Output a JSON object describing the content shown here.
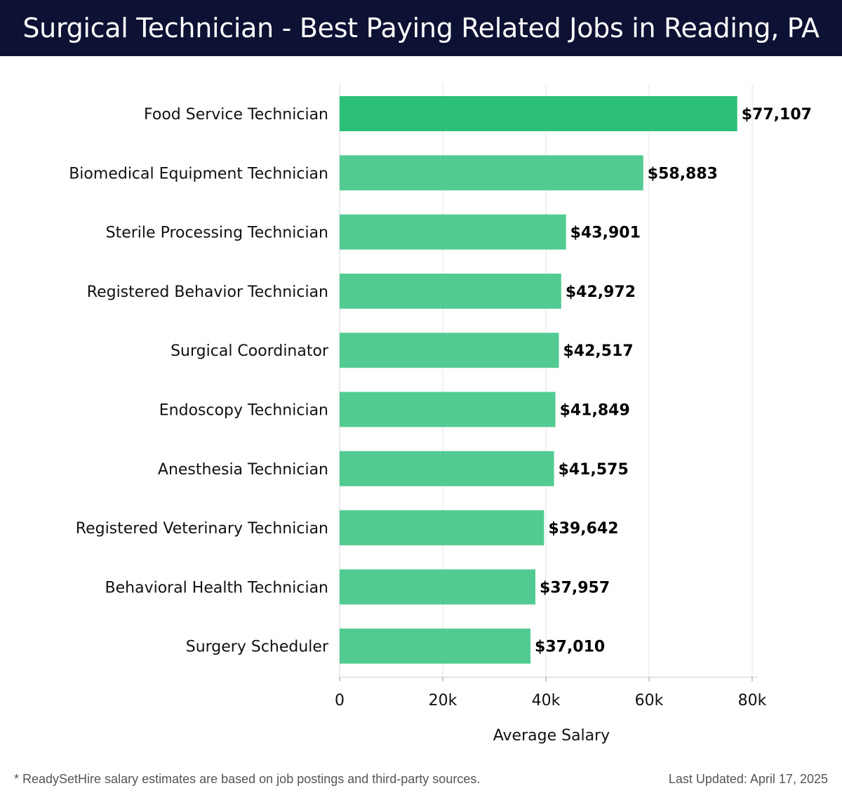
{
  "header": {
    "title": "Surgical Technician - Best Paying Related Jobs in Reading, PA"
  },
  "footer": {
    "note": "* ReadySetHire salary estimates are based on job postings and third-party sources.",
    "updated": "Last Updated: April 17, 2025"
  },
  "colors": {
    "header_bg": "#0d1133",
    "bar_top": "#2bbf77",
    "bar": "#52cb92",
    "grid": "#e3e3e3"
  },
  "chart_data": {
    "type": "bar",
    "orientation": "horizontal",
    "title": "Surgical Technician - Best Paying Related Jobs in Reading, PA",
    "xlabel": "Average Salary",
    "ylabel": "",
    "xlim": [
      0,
      80000
    ],
    "xticks": [
      0,
      20000,
      40000,
      60000,
      80000
    ],
    "xtick_labels": [
      "0",
      "20k",
      "40k",
      "60k",
      "80k"
    ],
    "grid": true,
    "categories": [
      "Food Service Technician",
      "Biomedical Equipment Technician",
      "Sterile Processing Technician",
      "Registered Behavior Technician",
      "Surgical Coordinator",
      "Endoscopy Technician",
      "Anesthesia Technician",
      "Registered Veterinary Technician",
      "Behavioral Health Technician",
      "Surgery Scheduler"
    ],
    "values": [
      77107,
      58883,
      43901,
      42972,
      42517,
      41849,
      41575,
      39642,
      37957,
      37010
    ],
    "value_labels": [
      "$77,107",
      "$58,883",
      "$43,901",
      "$42,972",
      "$42,517",
      "$41,849",
      "$41,575",
      "$39,642",
      "$37,957",
      "$37,010"
    ]
  }
}
